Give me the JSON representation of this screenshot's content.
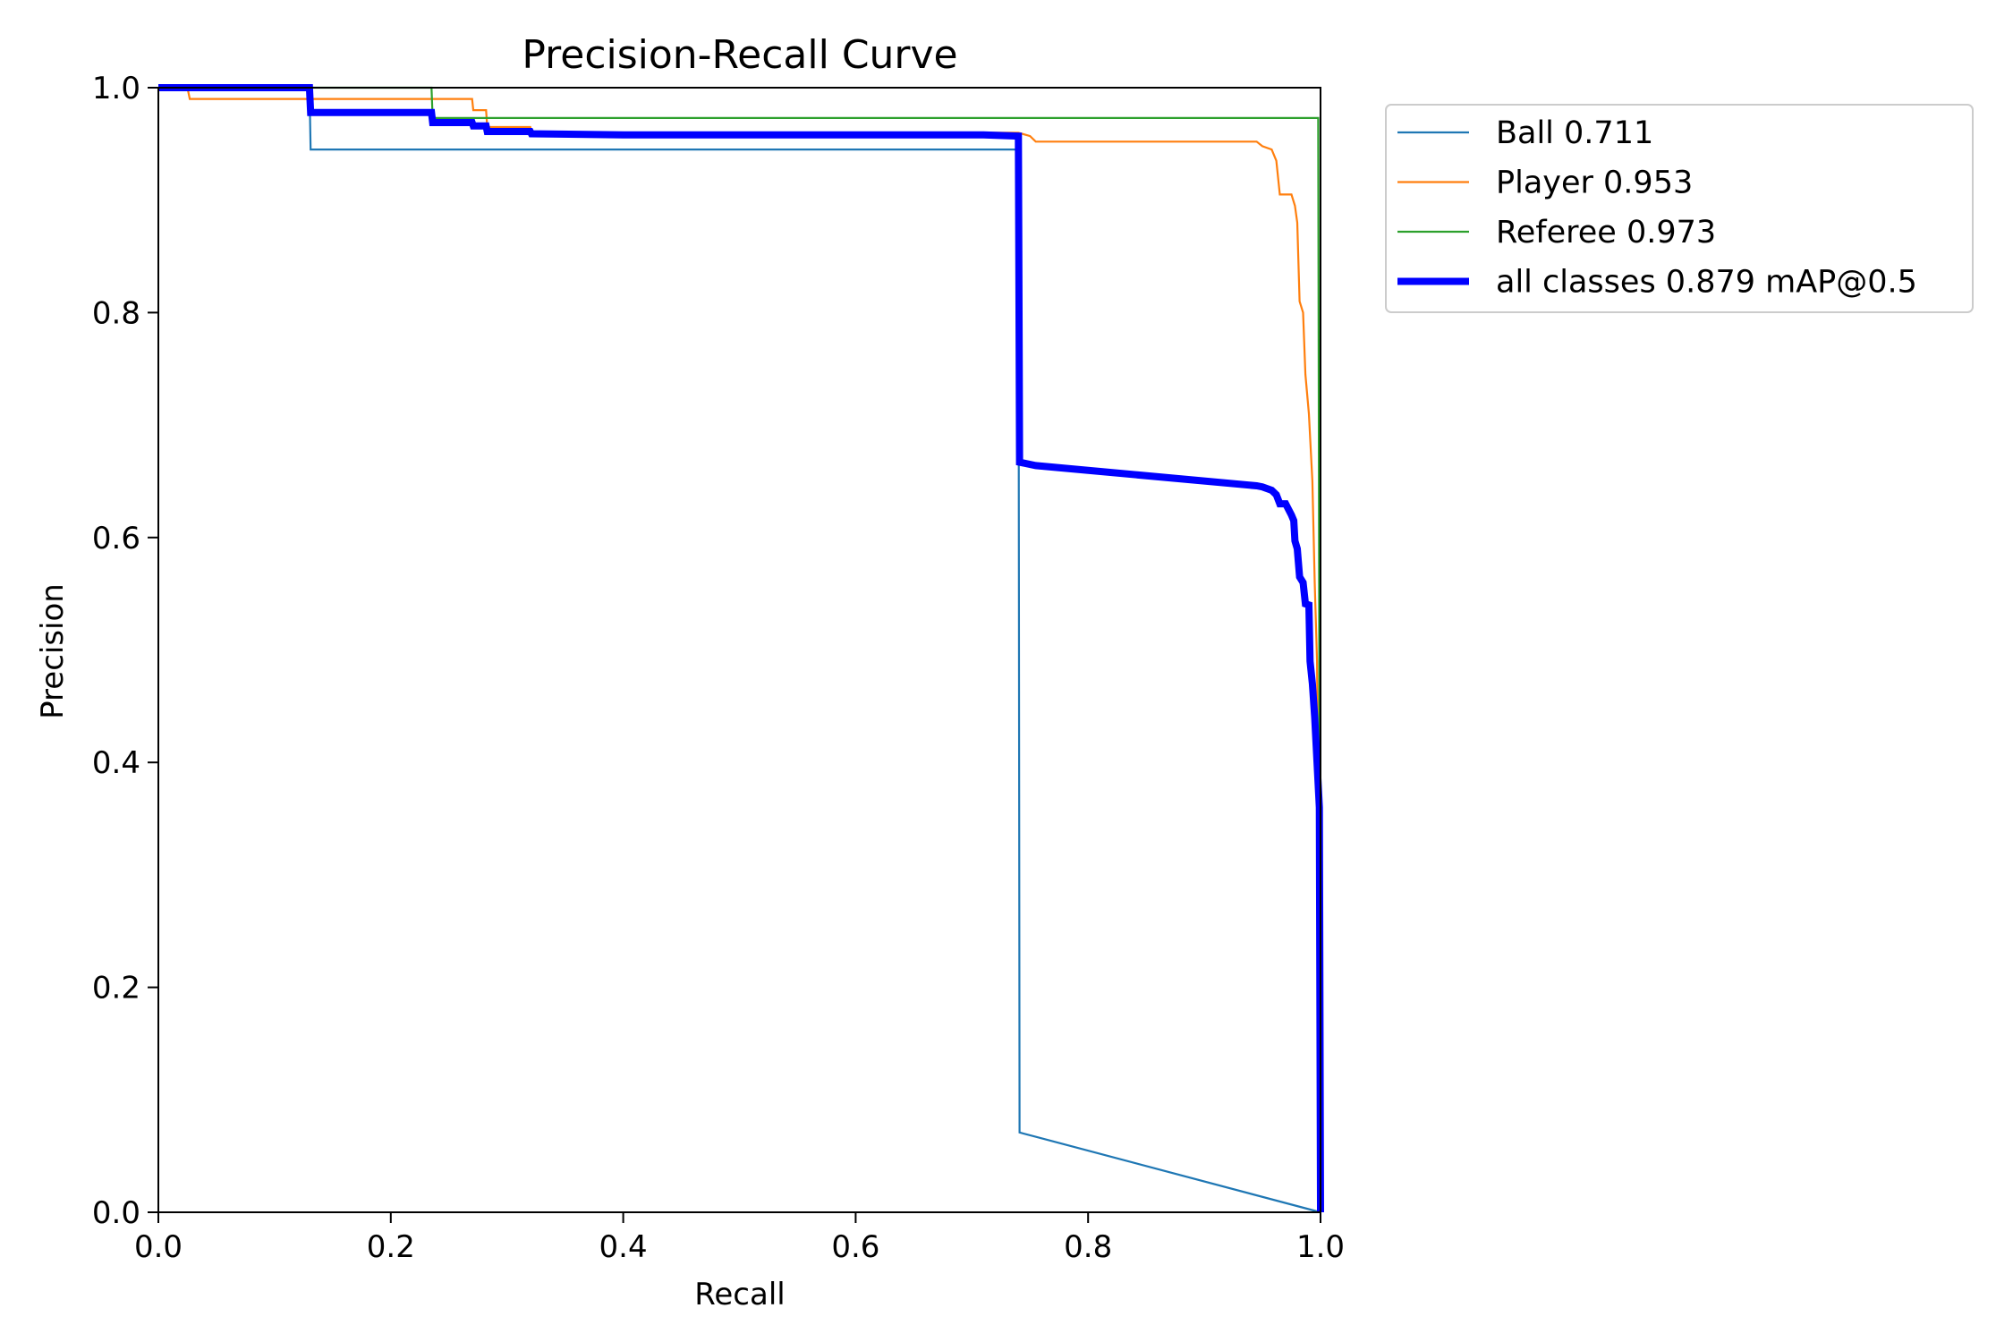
{
  "chart_data": {
    "type": "line",
    "title": "Precision-Recall Curve",
    "xlabel": "Recall",
    "ylabel": "Precision",
    "xlim": [
      0,
      1
    ],
    "ylim": [
      0,
      1
    ],
    "xticks": [
      0.0,
      0.2,
      0.4,
      0.6,
      0.8,
      1.0
    ],
    "yticks": [
      0.0,
      0.2,
      0.4,
      0.6,
      0.8,
      1.0
    ],
    "xtick_labels": [
      "0.0",
      "0.2",
      "0.4",
      "0.6",
      "0.8",
      "1.0"
    ],
    "ytick_labels": [
      "0.0",
      "0.2",
      "0.4",
      "0.6",
      "0.8",
      "1.0"
    ],
    "grid": false,
    "legend_position": "outside-top-right",
    "series": [
      {
        "name": "Ball 0.711",
        "color": "#1f77b4",
        "width": "thin",
        "points": [
          [
            0,
            1.0
          ],
          [
            0.13,
            1.0
          ],
          [
            0.131,
            0.945
          ],
          [
            0.74,
            0.945
          ],
          [
            0.741,
            0.071
          ],
          [
            1.0,
            0.0
          ]
        ]
      },
      {
        "name": "Player 0.953",
        "color": "#ff7f0e",
        "width": "thin",
        "points": [
          [
            0,
            1.0
          ],
          [
            0.025,
            1.0
          ],
          [
            0.027,
            0.99
          ],
          [
            0.27,
            0.99
          ],
          [
            0.271,
            0.98
          ],
          [
            0.282,
            0.98
          ],
          [
            0.283,
            0.965
          ],
          [
            0.32,
            0.965
          ],
          [
            0.321,
            0.96
          ],
          [
            0.74,
            0.96
          ],
          [
            0.75,
            0.957
          ],
          [
            0.755,
            0.952
          ],
          [
            0.945,
            0.952
          ],
          [
            0.95,
            0.948
          ],
          [
            0.958,
            0.945
          ],
          [
            0.962,
            0.935
          ],
          [
            0.965,
            0.905
          ],
          [
            0.975,
            0.905
          ],
          [
            0.978,
            0.895
          ],
          [
            0.98,
            0.88
          ],
          [
            0.982,
            0.81
          ],
          [
            0.985,
            0.8
          ],
          [
            0.987,
            0.745
          ],
          [
            0.99,
            0.71
          ],
          [
            0.993,
            0.65
          ],
          [
            0.995,
            0.56
          ],
          [
            0.997,
            0.49
          ],
          [
            0.998,
            0.33
          ],
          [
            1.0,
            0.0
          ]
        ]
      },
      {
        "name": "Referee 0.973",
        "color": "#2ca02c",
        "width": "thin",
        "points": [
          [
            0,
            1.0
          ],
          [
            0.235,
            1.0
          ],
          [
            0.236,
            0.973
          ],
          [
            0.998,
            0.973
          ],
          [
            0.999,
            0.45
          ],
          [
            1.0,
            0.0
          ]
        ]
      },
      {
        "name": "all classes 0.879 mAP@0.5",
        "color": "#0000ff",
        "width": "thick",
        "points": [
          [
            0,
            1.0
          ],
          [
            0.13,
            1.0
          ],
          [
            0.131,
            0.978
          ],
          [
            0.235,
            0.978
          ],
          [
            0.236,
            0.969
          ],
          [
            0.27,
            0.969
          ],
          [
            0.271,
            0.966
          ],
          [
            0.282,
            0.966
          ],
          [
            0.283,
            0.961
          ],
          [
            0.32,
            0.961
          ],
          [
            0.321,
            0.959
          ],
          [
            0.4,
            0.958
          ],
          [
            0.71,
            0.958
          ],
          [
            0.74,
            0.957
          ],
          [
            0.741,
            0.667
          ],
          [
            0.755,
            0.664
          ],
          [
            0.945,
            0.646
          ],
          [
            0.95,
            0.645
          ],
          [
            0.958,
            0.642
          ],
          [
            0.962,
            0.638
          ],
          [
            0.965,
            0.63
          ],
          [
            0.97,
            0.63
          ],
          [
            0.975,
            0.62
          ],
          [
            0.977,
            0.615
          ],
          [
            0.978,
            0.597
          ],
          [
            0.98,
            0.59
          ],
          [
            0.982,
            0.565
          ],
          [
            0.985,
            0.56
          ],
          [
            0.987,
            0.541
          ],
          [
            0.99,
            0.54
          ],
          [
            0.991,
            0.49
          ],
          [
            0.993,
            0.47
          ],
          [
            0.995,
            0.44
          ],
          [
            0.997,
            0.4
          ],
          [
            0.999,
            0.36
          ],
          [
            1.0,
            0.0
          ]
        ]
      }
    ]
  }
}
